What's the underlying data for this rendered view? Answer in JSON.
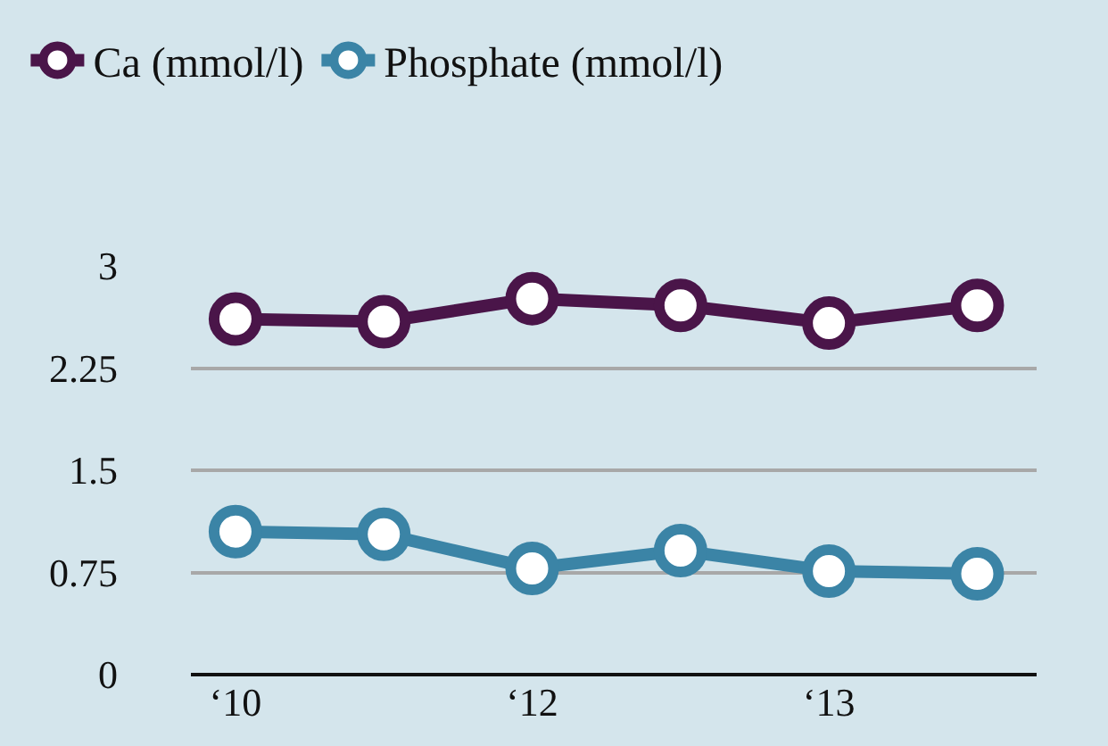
{
  "chart_data": {
    "type": "line",
    "categories": [
      "‘10",
      null,
      "‘12",
      null,
      "‘13",
      null
    ],
    "series": [
      {
        "name": "Ca (mmol/l)",
        "color": "#4a1549",
        "values": [
          2.61,
          2.59,
          2.76,
          2.71,
          2.58,
          2.71
        ]
      },
      {
        "name": "Phosphate (mmol/l)",
        "color": "#3b84a6",
        "values": [
          1.05,
          1.03,
          0.78,
          0.91,
          0.76,
          0.74
        ]
      }
    ],
    "ylim": [
      0,
      3
    ],
    "yticks": [
      0,
      0.75,
      1.5,
      2.25,
      3
    ],
    "grid": "y",
    "legend": "top left",
    "marker": "circle",
    "line_style": "solid"
  }
}
